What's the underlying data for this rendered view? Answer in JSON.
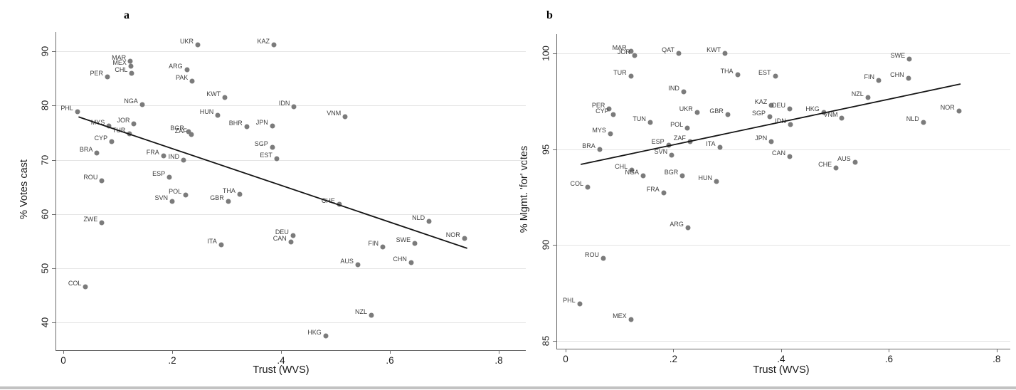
{
  "figure": {
    "panels": [
      {
        "label": "a"
      },
      {
        "label": "b"
      }
    ],
    "point_color": "#7b7b7b",
    "trend_color": "#141414",
    "grid_color": "#e4e4e4"
  },
  "chart_data": [
    {
      "type": "scatter",
      "panel_label": "a",
      "xlabel": "Trust (WVS)",
      "ylabel": "% Votes cast",
      "xlim": [
        0,
        0.8
      ],
      "ylim": [
        37,
        93
      ],
      "xticks": [
        0,
        0.2,
        0.4,
        0.6,
        0.8
      ],
      "xtick_labels": [
        "0",
        ".2",
        ".4",
        ".6",
        ".8"
      ],
      "yticks": [
        90,
        80,
        70,
        60,
        50,
        40
      ],
      "ytick_labels": [
        "90",
        "80",
        "70",
        "60",
        "50",
        "40"
      ],
      "grid": "horizontal",
      "legend": "none",
      "trend": {
        "x1": 0.028,
        "y1": 77.9,
        "x2": 0.742,
        "y2": 53.7
      },
      "points": [
        {
          "label": "PHL",
          "x": 0.026,
          "y": 78.8
        },
        {
          "label": "COL",
          "x": 0.041,
          "y": 46.6
        },
        {
          "label": "BRA",
          "x": 0.062,
          "y": 71.3
        },
        {
          "label": "ROU",
          "x": 0.071,
          "y": 66.1
        },
        {
          "label": "ZWE",
          "x": 0.071,
          "y": 58.4
        },
        {
          "label": "PER",
          "x": 0.081,
          "y": 85.3
        },
        {
          "label": "MYS",
          "x": 0.084,
          "y": 76.2
        },
        {
          "label": "CYP",
          "x": 0.089,
          "y": 73.3
        },
        {
          "label": "TUR",
          "x": 0.122,
          "y": 74.8
        },
        {
          "label": "MAR",
          "x": 0.123,
          "y": 88.1
        },
        {
          "label": "MEX",
          "x": 0.124,
          "y": 87.2
        },
        {
          "label": "CHL",
          "x": 0.126,
          "y": 86.0
        },
        {
          "label": "JOR",
          "x": 0.13,
          "y": 76.6
        },
        {
          "label": "NGA",
          "x": 0.145,
          "y": 80.2
        },
        {
          "label": "FRA",
          "x": 0.184,
          "y": 70.7
        },
        {
          "label": "ESP",
          "x": 0.195,
          "y": 66.8
        },
        {
          "label": "SVN",
          "x": 0.2,
          "y": 62.4
        },
        {
          "label": "IND",
          "x": 0.221,
          "y": 69.9
        },
        {
          "label": "POL",
          "x": 0.225,
          "y": 63.5
        },
        {
          "label": "ARG",
          "x": 0.227,
          "y": 86.6
        },
        {
          "label": "BGR",
          "x": 0.23,
          "y": 75.2
        },
        {
          "label": "ZAF",
          "x": 0.235,
          "y": 74.6
        },
        {
          "label": "PAK",
          "x": 0.237,
          "y": 84.5
        },
        {
          "label": "UKR",
          "x": 0.247,
          "y": 91.2
        },
        {
          "label": "HUN",
          "x": 0.284,
          "y": 78.2
        },
        {
          "label": "ITA",
          "x": 0.29,
          "y": 54.3
        },
        {
          "label": "KWT",
          "x": 0.297,
          "y": 81.5
        },
        {
          "label": "GBR",
          "x": 0.303,
          "y": 62.4
        },
        {
          "label": "THA",
          "x": 0.324,
          "y": 63.6
        },
        {
          "label": "BHR",
          "x": 0.337,
          "y": 76.1
        },
        {
          "label": "JPN",
          "x": 0.384,
          "y": 76.2
        },
        {
          "label": "SGP",
          "x": 0.384,
          "y": 72.3
        },
        {
          "label": "KAZ",
          "x": 0.387,
          "y": 91.2
        },
        {
          "label": "EST",
          "x": 0.392,
          "y": 70.2
        },
        {
          "label": "CAN",
          "x": 0.418,
          "y": 54.9
        },
        {
          "label": "DEU",
          "x": 0.422,
          "y": 56.0
        },
        {
          "label": "IDN",
          "x": 0.424,
          "y": 79.8
        },
        {
          "label": "HKG",
          "x": 0.482,
          "y": 37.5
        },
        {
          "label": "CHE",
          "x": 0.507,
          "y": 61.8
        },
        {
          "label": "VNM",
          "x": 0.518,
          "y": 77.9
        },
        {
          "label": "AUS",
          "x": 0.541,
          "y": 50.7
        },
        {
          "label": "NZL",
          "x": 0.566,
          "y": 41.3
        },
        {
          "label": "FIN",
          "x": 0.587,
          "y": 53.9
        },
        {
          "label": "CHN",
          "x": 0.639,
          "y": 51.0
        },
        {
          "label": "SWE",
          "x": 0.646,
          "y": 54.6
        },
        {
          "label": "NLD",
          "x": 0.672,
          "y": 58.6
        },
        {
          "label": "NOR",
          "x": 0.737,
          "y": 55.5
        }
      ]
    },
    {
      "type": "scatter",
      "panel_label": "b",
      "xlabel": "Trust (WVS)",
      "ylabel": "% Mgmt. 'for' votes",
      "xlim": [
        0,
        0.8
      ],
      "ylim": [
        84.5,
        101
      ],
      "xticks": [
        0,
        0.2,
        0.4,
        0.6,
        0.8
      ],
      "xtick_labels": [
        "0",
        ".2",
        ".4",
        ".6",
        ".8"
      ],
      "yticks": [
        100,
        95,
        90,
        85
      ],
      "ytick_labels": [
        "100",
        "95",
        "90",
        "85"
      ],
      "grid": "horizontal",
      "legend": "none",
      "trend": {
        "x1": 0.028,
        "y1": 94.2,
        "x2": 0.733,
        "y2": 98.4
      },
      "points": [
        {
          "label": "PHL",
          "x": 0.026,
          "y": 86.9
        },
        {
          "label": "COL",
          "x": 0.041,
          "y": 93.0
        },
        {
          "label": "BRA",
          "x": 0.063,
          "y": 95.0
        },
        {
          "label": "ROU",
          "x": 0.07,
          "y": 89.3
        },
        {
          "label": "PER",
          "x": 0.081,
          "y": 97.1
        },
        {
          "label": "MYS",
          "x": 0.083,
          "y": 95.8
        },
        {
          "label": "CYP",
          "x": 0.088,
          "y": 96.8
        },
        {
          "label": "MEX",
          "x": 0.121,
          "y": 86.1
        },
        {
          "label": "TUR",
          "x": 0.121,
          "y": 98.8
        },
        {
          "label": "MAR",
          "x": 0.121,
          "y": 100.1
        },
        {
          "label": "CHL",
          "x": 0.123,
          "y": 93.9
        },
        {
          "label": "JOR",
          "x": 0.128,
          "y": 99.9
        },
        {
          "label": "NGA",
          "x": 0.144,
          "y": 93.6
        },
        {
          "label": "TUN",
          "x": 0.157,
          "y": 96.4
        },
        {
          "label": "FRA",
          "x": 0.182,
          "y": 92.7
        },
        {
          "label": "ESP",
          "x": 0.191,
          "y": 95.2
        },
        {
          "label": "SVN",
          "x": 0.197,
          "y": 94.7
        },
        {
          "label": "QAT",
          "x": 0.21,
          "y": 100.0
        },
        {
          "label": "BGR",
          "x": 0.217,
          "y": 93.6
        },
        {
          "label": "IND",
          "x": 0.219,
          "y": 98.0
        },
        {
          "label": "POL",
          "x": 0.226,
          "y": 96.1
        },
        {
          "label": "ARG",
          "x": 0.227,
          "y": 90.9
        },
        {
          "label": "ZAF",
          "x": 0.231,
          "y": 95.4
        },
        {
          "label": "UKR",
          "x": 0.244,
          "y": 96.9
        },
        {
          "label": "HUN",
          "x": 0.28,
          "y": 93.3
        },
        {
          "label": "ITA",
          "x": 0.286,
          "y": 95.1
        },
        {
          "label": "KWT",
          "x": 0.296,
          "y": 100.0
        },
        {
          "label": "GBR",
          "x": 0.301,
          "y": 96.8
        },
        {
          "label": "THA",
          "x": 0.319,
          "y": 98.9
        },
        {
          "label": "SGP",
          "x": 0.379,
          "y": 96.7
        },
        {
          "label": "JPN",
          "x": 0.382,
          "y": 95.4
        },
        {
          "label": "KAZ",
          "x": 0.382,
          "y": 97.3
        },
        {
          "label": "EST",
          "x": 0.389,
          "y": 98.8
        },
        {
          "label": "CAN",
          "x": 0.416,
          "y": 94.6
        },
        {
          "label": "DEU",
          "x": 0.416,
          "y": 97.1
        },
        {
          "label": "IDN",
          "x": 0.417,
          "y": 96.3
        },
        {
          "label": "HKG",
          "x": 0.479,
          "y": 96.9
        },
        {
          "label": "CHE",
          "x": 0.502,
          "y": 94.0
        },
        {
          "label": "VNM",
          "x": 0.513,
          "y": 96.6
        },
        {
          "label": "AUS",
          "x": 0.537,
          "y": 94.3
        },
        {
          "label": "NZL",
          "x": 0.561,
          "y": 97.7
        },
        {
          "label": "FIN",
          "x": 0.581,
          "y": 98.6
        },
        {
          "label": "CHN",
          "x": 0.636,
          "y": 98.7
        },
        {
          "label": "SWE",
          "x": 0.638,
          "y": 99.7
        },
        {
          "label": "NLD",
          "x": 0.664,
          "y": 96.4
        },
        {
          "label": "NOR",
          "x": 0.73,
          "y": 97.0
        }
      ]
    }
  ]
}
